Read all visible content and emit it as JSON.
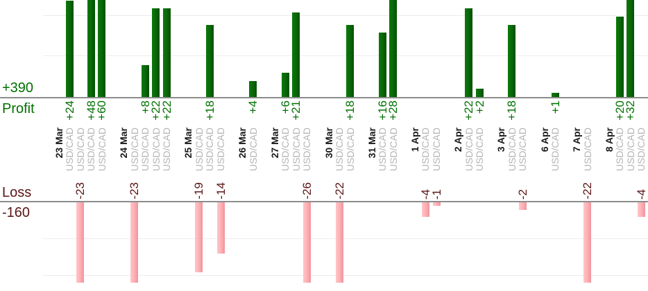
{
  "chart_data": {
    "type": "bar",
    "description": "Daily trade profit and loss bars, grouped by date, one bar per trade",
    "instrument": "USD/CAD",
    "summary": {
      "profit_total": "+390",
      "profit_name": "Profit",
      "loss_name": "Loss",
      "loss_total": "-160"
    },
    "profit_axis": {
      "visible_max": 24,
      "gridline_interval": 10,
      "total": 390
    },
    "loss_axis": {
      "visible_min": -22,
      "gridline_interval": 10,
      "total": -160
    },
    "legend_position": "none",
    "grid": true,
    "groups": [
      {
        "date": "23 Mar",
        "trades": [
          {
            "instrument": "USD/CAD",
            "value": 24,
            "label": "+24"
          },
          {
            "instrument": "USD/CAD",
            "value": -23,
            "label": "-23"
          },
          {
            "instrument": "USD/CAD",
            "value": 48,
            "label": "+48"
          },
          {
            "instrument": "USD/CAD",
            "value": 60,
            "label": "+60"
          }
        ]
      },
      {
        "date": "24 Mar",
        "trades": [
          {
            "instrument": "USD/CAD",
            "value": -23,
            "label": "-23"
          },
          {
            "instrument": "USD/CAD",
            "value": 8,
            "label": "+8"
          },
          {
            "instrument": "USD/CAD",
            "value": 22,
            "label": "+22"
          },
          {
            "instrument": "USD/CAD",
            "value": 22,
            "label": "+22"
          }
        ]
      },
      {
        "date": "25 Mar",
        "trades": [
          {
            "instrument": "USD/CAD",
            "value": -19,
            "label": "-19"
          },
          {
            "instrument": "USD/CAD",
            "value": 18,
            "label": "+18"
          },
          {
            "instrument": "USD/CAD",
            "value": -14,
            "label": "-14"
          }
        ]
      },
      {
        "date": "26 Mar",
        "trades": [
          {
            "instrument": "USD/CAD",
            "value": 4,
            "label": "+4"
          }
        ]
      },
      {
        "date": "27 Mar",
        "trades": [
          {
            "instrument": "USD/CAD",
            "value": 6,
            "label": "+6"
          },
          {
            "instrument": "USD/CAD",
            "value": 21,
            "label": "+21"
          },
          {
            "instrument": "USD/CAD",
            "value": -26,
            "label": "-26"
          }
        ]
      },
      {
        "date": "30 Mar",
        "trades": [
          {
            "instrument": "USD/CAD",
            "value": -22,
            "label": "-22"
          },
          {
            "instrument": "USD/CAD",
            "value": 18,
            "label": "+18"
          }
        ]
      },
      {
        "date": "31 Mar",
        "trades": [
          {
            "instrument": "USD/CAD",
            "value": 16,
            "label": "+16"
          },
          {
            "instrument": "USD/CAD",
            "value": 28,
            "label": "+28"
          }
        ]
      },
      {
        "date": "1 Apr",
        "trades": [
          {
            "instrument": "USD/CAD",
            "value": -4,
            "label": "-4"
          },
          {
            "instrument": "USD/CAD",
            "value": -1,
            "label": "-1"
          }
        ]
      },
      {
        "date": "2 Apr",
        "trades": [
          {
            "instrument": "USD/CAD",
            "value": 22,
            "label": "+22"
          },
          {
            "instrument": "USD/CAD",
            "value": 2,
            "label": "+2"
          }
        ]
      },
      {
        "date": "3 Apr",
        "trades": [
          {
            "instrument": "USD/CAD",
            "value": 18,
            "label": "+18"
          },
          {
            "instrument": "USD/CAD",
            "value": -2,
            "label": "-2"
          }
        ]
      },
      {
        "date": "6 Apr",
        "trades": [
          {
            "instrument": "USD/CAD",
            "value": 1,
            "label": "+1"
          }
        ]
      },
      {
        "date": "7 Apr",
        "trades": [
          {
            "instrument": "USD/CAD",
            "value": -22,
            "label": "-22"
          }
        ]
      },
      {
        "date": "8 Apr",
        "trades": [
          {
            "instrument": "USD/CAD",
            "value": 20,
            "label": "+20"
          },
          {
            "instrument": "USD/CAD",
            "value": 32,
            "label": "+32"
          },
          {
            "instrument": "USD/CAD",
            "value": -4,
            "label": "-4"
          }
        ]
      }
    ],
    "colors": {
      "profit_bar_hi": "#0d790d",
      "profit_bar": "#096809",
      "profit_bar_edge": "#035003",
      "loss_bar_hi": "#ffc6c9",
      "loss_bar": "#fdb0b5",
      "loss_bar_edge": "#ef959d",
      "profit_text": "#007000",
      "loss_text": "#5a1414",
      "date_text": "#1a1a1a",
      "instrument_text": "#b4b4b4",
      "axis_line": "#8c8c8c",
      "gridline": "#ececec"
    }
  }
}
